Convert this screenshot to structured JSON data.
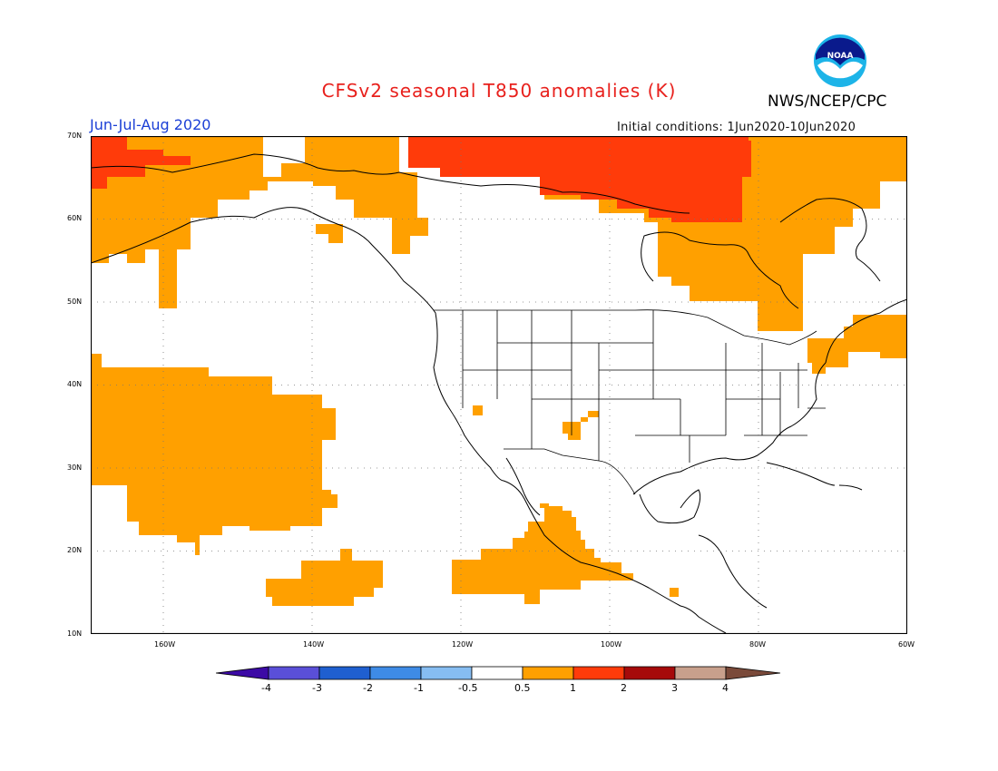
{
  "title": "CFSv2 seasonal T850 anomalies (K)",
  "agency": "NWS/NCEP/CPC",
  "logo_text": "NOAA",
  "period": "Jun-Jul-Aug 2020",
  "initial_conditions": "Initial conditions: 1Jun2020-10Jun2020",
  "map": {
    "lon_range": [
      -172,
      -60
    ],
    "lat_range": [
      10,
      70
    ],
    "lat_ticks": [
      "10N",
      "20N",
      "30N",
      "40N",
      "50N",
      "60N",
      "70N"
    ],
    "lon_ticks": [
      "160W",
      "140W",
      "120W",
      "100W",
      "80W",
      "60W"
    ],
    "grid": "dotted",
    "regions": [
      {
        "name": "north-pacific-alaska",
        "level": "0.5-1"
      },
      {
        "name": "arctic-canada",
        "level": "1-2"
      },
      {
        "name": "gulf-of-alaska",
        "level": "0.5-1"
      },
      {
        "name": "subtropical-pacific-west",
        "level": "0.5-1"
      },
      {
        "name": "tropical-pacific-central",
        "level": "0.5-1"
      },
      {
        "name": "eastern-pacific-mexico",
        "level": "0.5-1"
      },
      {
        "name": "northeast-us-maritimes",
        "level": "0.5-1"
      },
      {
        "name": "southwest-us",
        "level": "0.5-1"
      }
    ]
  },
  "colorbar": {
    "labels": [
      "-4",
      "-3",
      "-2",
      "-1",
      "-0.5",
      "0.5",
      "1",
      "2",
      "3",
      "4"
    ],
    "colors": [
      "#3c0aa5",
      "#5a4fd8",
      "#1f5fd0",
      "#3e8be6",
      "#86bdf2",
      "#ffffff",
      "#ffa000",
      "#ff3b0a",
      "#a60a0a",
      "#c8a08c",
      "#7a4a3a"
    ]
  },
  "colors": {
    "level_0_5_1": "#ffa000",
    "level_1_2": "#ff3b0a",
    "title": "#e8201c",
    "period": "#1b3fd6"
  }
}
